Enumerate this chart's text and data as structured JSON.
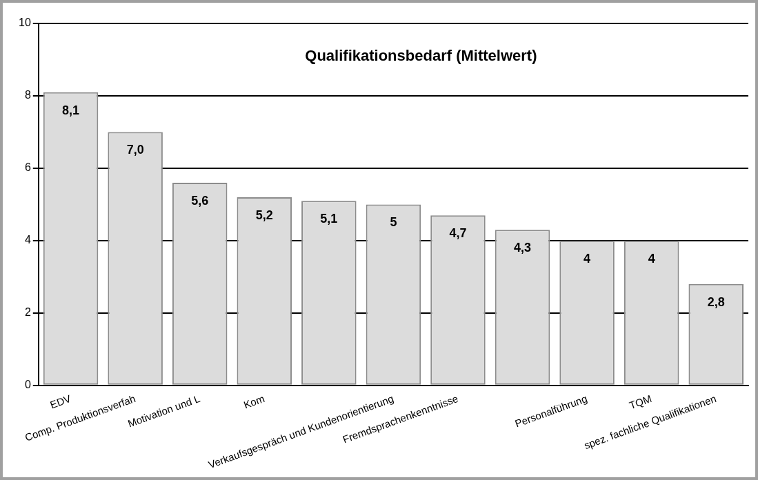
{
  "chart_data": {
    "type": "bar",
    "title": "Qualifikationsbedarf (Mittelwert)",
    "categories": [
      "EDV",
      "Comp. Produktionsverfah",
      "Motivation und L",
      "Kom",
      null,
      "Verkaufsgespräch und Kundenorientierung",
      "Fremdsprachenkenntnisse",
      null,
      "Personalführung",
      "TQM",
      "spez. fachliche Qualifikationen"
    ],
    "values": [
      8.1,
      7.0,
      5.6,
      5.2,
      5.1,
      5,
      4.7,
      4.3,
      4,
      4,
      2.8
    ],
    "value_labels": [
      "8,1",
      "7,0",
      "5,6",
      "5,2",
      "5,1",
      "5",
      "4,7",
      "4,3",
      "4",
      "4",
      "2,8"
    ],
    "color": "#dcdcdc",
    "ylim": [
      0,
      10
    ],
    "yticks": [
      0,
      2,
      4,
      6,
      8,
      10
    ],
    "grid": "y",
    "legend": false
  }
}
